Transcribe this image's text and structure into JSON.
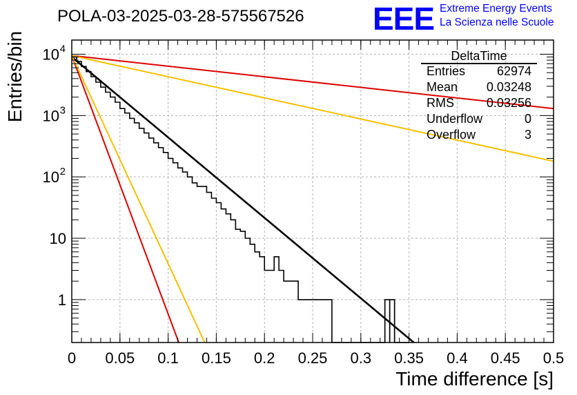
{
  "title": "POLA-03-2025-03-28-575567526",
  "logo": {
    "mark": "EEE",
    "line1": "Extreme Energy Events",
    "line2": "La Scienza nelle Scuole"
  },
  "stats": {
    "name": "DeltaTime",
    "rows": [
      {
        "label": "Entries",
        "value": "62974"
      },
      {
        "label": "Mean",
        "value": "0.03248"
      },
      {
        "label": "RMS",
        "value": "0.03256"
      },
      {
        "label": "Underflow",
        "value": "0"
      },
      {
        "label": "Overflow",
        "value": "3"
      }
    ]
  },
  "colors": {
    "hist": "#000000",
    "fit": "#000000",
    "red": "#dd0000",
    "gold": "#f5c000",
    "grid": "#b0b0b0",
    "logo": "#0000ff"
  },
  "chart_data": {
    "type": "histogram",
    "title": "POLA-03-2025-03-28-575567526",
    "xlabel": "Time difference [s]",
    "ylabel": "Entries/bin",
    "xlim": [
      0,
      0.5
    ],
    "ylim": [
      0.2,
      17000
    ],
    "yscale": "log",
    "grid": true,
    "legend": "top-right",
    "xticks": [
      "0",
      "0.05",
      "0.1",
      "0.15",
      "0.2",
      "0.25",
      "0.3",
      "0.35",
      "0.4",
      "0.45",
      "0.5"
    ],
    "yticks": [
      {
        "value": 1,
        "label": "1",
        "sup": ""
      },
      {
        "value": 10,
        "label": "10",
        "sup": ""
      },
      {
        "value": 100,
        "label": "10",
        "sup": "2"
      },
      {
        "value": 1000,
        "label": "10",
        "sup": "3"
      },
      {
        "value": 10000,
        "label": "10",
        "sup": "4"
      }
    ],
    "bin_width": 0.005,
    "bin_start": 0,
    "hist_values": [
      9000,
      7600,
      6300,
      5200,
      4300,
      3500,
      2900,
      2400,
      2000,
      1650,
      1300,
      1100,
      900,
      760,
      620,
      520,
      430,
      360,
      300,
      250,
      200,
      170,
      140,
      120,
      100,
      80,
      70,
      70,
      56,
      45,
      38,
      30,
      25,
      20,
      14,
      13,
      10,
      8,
      6,
      5,
      3,
      3,
      5,
      3,
      2,
      2,
      2,
      1,
      1,
      1,
      1,
      1,
      1,
      1,
      0,
      0,
      0,
      0,
      0,
      0,
      0,
      0,
      0,
      0,
      0,
      1,
      1,
      0,
      0,
      0
    ],
    "series": [
      {
        "name": "fit",
        "style": "black-thick",
        "x": [
          0,
          0.355
        ],
        "y": [
          9000,
          0.2
        ]
      },
      {
        "name": "red-slow",
        "style": "red",
        "x": [
          0,
          0.5
        ],
        "y": [
          9500,
          1300
        ]
      },
      {
        "name": "gold-slow",
        "style": "gold",
        "x": [
          0,
          0.5
        ],
        "y": [
          9500,
          180
        ]
      },
      {
        "name": "red-fast",
        "style": "red",
        "x": [
          0,
          0.111
        ],
        "y": [
          9500,
          0.2
        ]
      },
      {
        "name": "gold-fast",
        "style": "gold",
        "x": [
          0,
          0.138
        ],
        "y": [
          9500,
          0.2
        ]
      }
    ]
  }
}
